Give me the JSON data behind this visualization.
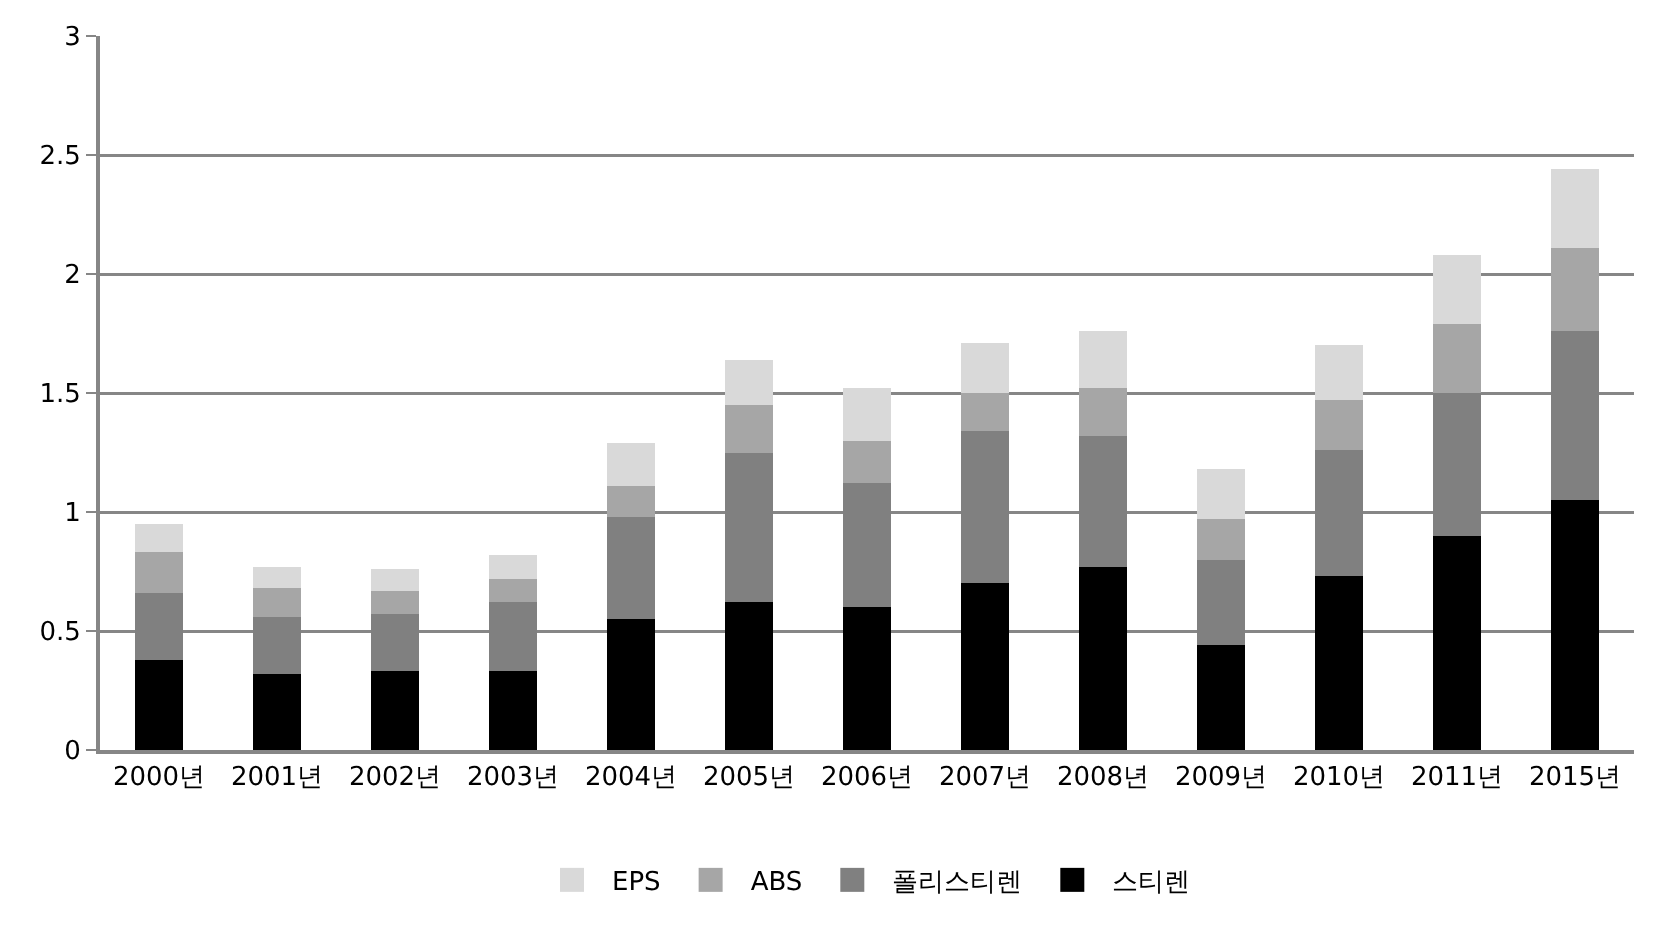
{
  "chart_data": {
    "type": "bar",
    "stacked": true,
    "categories": [
      "2000년",
      "2001년",
      "2002년",
      "2003년",
      "2004년",
      "2005년",
      "2006년",
      "2007년",
      "2008년",
      "2009년",
      "2010년",
      "2011년",
      "2015년"
    ],
    "series": [
      {
        "name": "스티렌",
        "color": "#000000",
        "values": [
          0.38,
          0.32,
          0.33,
          0.33,
          0.55,
          0.62,
          0.6,
          0.7,
          0.77,
          0.44,
          0.73,
          0.9,
          1.05
        ]
      },
      {
        "name": "폴리스티렌",
        "color": "#808080",
        "values": [
          0.28,
          0.24,
          0.24,
          0.29,
          0.43,
          0.63,
          0.52,
          0.64,
          0.55,
          0.36,
          0.53,
          0.6,
          0.71
        ]
      },
      {
        "name": "ABS",
        "color": "#a6a6a6",
        "values": [
          0.17,
          0.12,
          0.1,
          0.1,
          0.13,
          0.2,
          0.18,
          0.16,
          0.2,
          0.17,
          0.21,
          0.29,
          0.35
        ]
      },
      {
        "name": "EPS",
        "color": "#d9d9d9",
        "values": [
          0.12,
          0.09,
          0.09,
          0.1,
          0.18,
          0.19,
          0.22,
          0.21,
          0.24,
          0.21,
          0.23,
          0.29,
          0.33
        ]
      }
    ],
    "ylim": [
      0,
      3
    ],
    "yticks": [
      0,
      0.5,
      1,
      1.5,
      2,
      2.5,
      3
    ],
    "grid": "y",
    "legend": "bottom"
  }
}
